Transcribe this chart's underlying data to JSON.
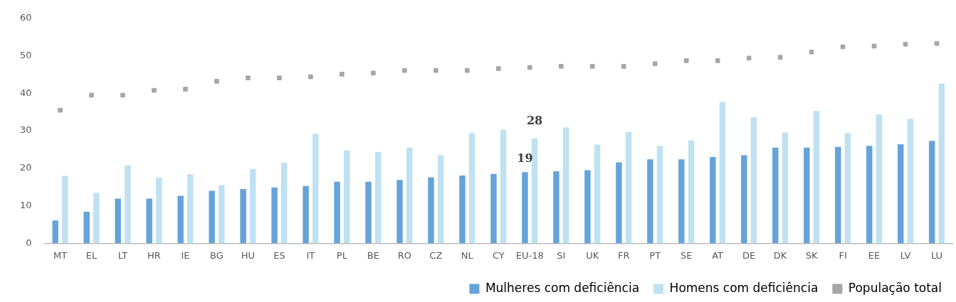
{
  "chart_data": {
    "type": "bar",
    "categories": [
      "MT",
      "EL",
      "LT",
      "HR",
      "IE",
      "BG",
      "HU",
      "ES",
      "IT",
      "PL",
      "BE",
      "RO",
      "CZ",
      "NL",
      "CY",
      "EU-18",
      "SI",
      "UK",
      "FR",
      "PT",
      "SE",
      "AT",
      "DE",
      "DK",
      "SK",
      "FI",
      "EE",
      "LV",
      "LU"
    ],
    "series": [
      {
        "name": "Mulheres com deficiência",
        "color": "#65a3d9",
        "values": [
          6.1,
          8.4,
          11.9,
          11.9,
          12.7,
          14,
          14.5,
          14.9,
          15.3,
          16.4,
          16.4,
          16.9,
          17.6,
          18.1,
          18.5,
          19,
          19.2,
          19.5,
          21.6,
          22.4,
          22.4,
          23,
          23.5,
          25.5,
          25.5,
          25.7,
          26,
          26.4,
          27.3
        ],
        "value_labels": [
          null,
          null,
          null,
          null,
          null,
          null,
          null,
          null,
          null,
          null,
          null,
          null,
          null,
          null,
          null,
          "19",
          null,
          null,
          null,
          null,
          null,
          null,
          null,
          null,
          null,
          null,
          null,
          null,
          null
        ]
      },
      {
        "name": "Homens com deficiência",
        "color": "#bfe1f2",
        "values": [
          18,
          13.5,
          20.8,
          17.5,
          18.4,
          15.5,
          19.9,
          21.5,
          29.2,
          24.8,
          24.4,
          25.5,
          23.5,
          29.4,
          30.3,
          28,
          30.9,
          26.3,
          29.7,
          26,
          27.4,
          37.7,
          33.6,
          29.6,
          35.3,
          29.4,
          34.4,
          33.2,
          42.6
        ],
        "value_labels": [
          null,
          null,
          null,
          null,
          null,
          null,
          null,
          null,
          null,
          null,
          null,
          null,
          null,
          null,
          null,
          "28",
          null,
          null,
          null,
          null,
          null,
          null,
          null,
          null,
          null,
          null,
          null,
          null,
          null
        ]
      },
      {
        "name": "População total",
        "type": "scatter",
        "marker": "square",
        "color": "#a6a6a6",
        "values": [
          35.5,
          39.5,
          39.5,
          40.8,
          41.1,
          43.2,
          44.1,
          44.1,
          44.4,
          45.1,
          45.4,
          46.1,
          46.1,
          46.1,
          46.6,
          46.9,
          47.2,
          47.2,
          47.2,
          47.9,
          48.7,
          48.7,
          49.4,
          49.6,
          51,
          52.4,
          52.6,
          53.1,
          53.3
        ]
      }
    ],
    "ylim": [
      0,
      60
    ],
    "yticks": [
      0,
      10,
      20,
      30,
      40,
      50,
      60
    ],
    "grid": false,
    "legend": "bottom"
  }
}
